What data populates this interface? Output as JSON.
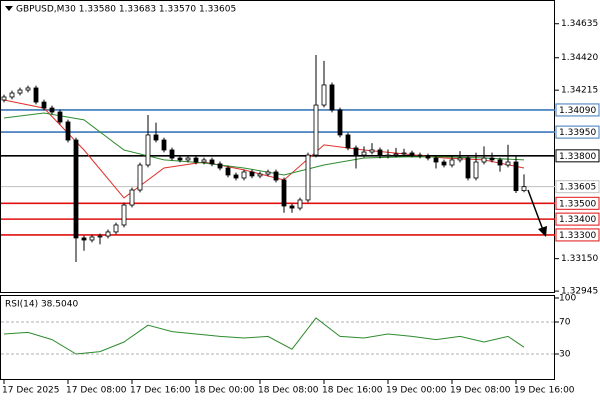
{
  "chart_data": {
    "type": "candlestick",
    "title": "GBPUSD,M30  1.33580 1.33683 1.33570 1.33605",
    "xlim": [
      -0.5,
      68.875
    ],
    "xticks": [
      {
        "value": 0,
        "label": "17 Dec 2025"
      },
      {
        "value": 8,
        "label": "17 Dec 08:00"
      },
      {
        "value": 16,
        "label": "17 Dec 16:00"
      },
      {
        "value": 24,
        "label": "18 Dec 00:00"
      },
      {
        "value": 32,
        "label": "18 Dec 08:00"
      },
      {
        "value": 40,
        "label": "18 Dec 16:00"
      },
      {
        "value": 48,
        "label": "19 Dec 00:00"
      },
      {
        "value": 56,
        "label": "19 Dec 08:00"
      },
      {
        "value": 64,
        "label": "19 Dec 16:00"
      }
    ],
    "ylim": [
      1.32933,
      1.34785
    ],
    "yticks": [
      1.34635,
      {
        "value": 1.3442,
        "label": "1.34420"
      },
      1.34215,
      {
        "value": 1.3315,
        "label": "1.33150"
      },
      1.32945
    ],
    "up_color": "#ffffff",
    "down_color": "#000000",
    "open": [
      1.34153,
      1.34172,
      1.34197,
      1.34216,
      1.34229,
      1.3414,
      1.34102,
      1.34077,
      1.34014,
      1.339,
      1.33281,
      1.33268,
      1.33287,
      1.33293,
      1.33319,
      1.33363,
      1.33489,
      1.33584,
      1.33742,
      1.33932,
      1.339,
      1.33837,
      1.33786,
      1.33774,
      1.33786,
      1.33761,
      1.33774,
      1.33749,
      1.33723,
      1.33679,
      1.3366,
      1.33698,
      1.33673,
      1.33685,
      1.33698,
      1.33647,
      1.33483,
      1.3347,
      1.33521,
      1.33805,
      1.34121,
      1.34248,
      1.3409,
      1.33932,
      1.3385,
      1.33805,
      1.33824,
      1.33837,
      1.33799,
      1.33805,
      1.33812,
      1.33818,
      1.33805,
      1.33799,
      1.33786,
      1.33761,
      1.33742,
      1.33774,
      1.33786,
      1.3366,
      1.33761,
      1.33786,
      1.33774,
      1.33742,
      1.33761,
      1.3358
    ],
    "high": [
      1.34187,
      1.34212,
      1.34231,
      1.34244,
      1.34244,
      1.34155,
      1.34117,
      1.34092,
      1.34029,
      1.33915,
      1.33296,
      1.33302,
      1.33308,
      1.33334,
      1.33378,
      1.33504,
      1.33599,
      1.33757,
      1.34058,
      1.3401,
      1.33915,
      1.33852,
      1.33801,
      1.33801,
      1.33801,
      1.33789,
      1.33789,
      1.33764,
      1.33738,
      1.33694,
      1.33713,
      1.33713,
      1.337,
      1.33713,
      1.33713,
      1.33662,
      1.33498,
      1.33536,
      1.3382,
      1.34437,
      1.344,
      1.34263,
      1.34105,
      1.33947,
      1.33865,
      1.3386,
      1.3388,
      1.33852,
      1.3384,
      1.3385,
      1.33845,
      1.33833,
      1.3382,
      1.33814,
      1.33801,
      1.33776,
      1.338,
      1.3383,
      1.33801,
      1.3382,
      1.3386,
      1.3382,
      1.33789,
      1.3387,
      1.338,
      1.33683
    ],
    "low": [
      1.34138,
      1.34157,
      1.34182,
      1.34201,
      1.34125,
      1.34087,
      1.34062,
      1.33999,
      1.33885,
      1.33129,
      1.332,
      1.33253,
      1.3324,
      1.33278,
      1.33304,
      1.33348,
      1.33474,
      1.33569,
      1.33727,
      1.33885,
      1.33822,
      1.33771,
      1.33759,
      1.33759,
      1.33746,
      1.33746,
      1.33734,
      1.33708,
      1.33664,
      1.33645,
      1.33645,
      1.33658,
      1.33658,
      1.3367,
      1.33632,
      1.3344,
      1.3344,
      1.33455,
      1.33506,
      1.3379,
      1.34106,
      1.34075,
      1.33917,
      1.33835,
      1.3372,
      1.3379,
      1.33809,
      1.33784,
      1.33784,
      1.3379,
      1.33797,
      1.3379,
      1.33784,
      1.33771,
      1.3372,
      1.33727,
      1.33727,
      1.33759,
      1.33645,
      1.33645,
      1.33746,
      1.33759,
      1.337,
      1.33727,
      1.33565,
      1.3357
    ],
    "close": [
      1.34172,
      1.34197,
      1.34216,
      1.34229,
      1.3414,
      1.34102,
      1.34077,
      1.34014,
      1.339,
      1.33281,
      1.33268,
      1.33287,
      1.33293,
      1.33319,
      1.33363,
      1.33489,
      1.33584,
      1.33742,
      1.33932,
      1.339,
      1.33837,
      1.33786,
      1.33774,
      1.33786,
      1.33761,
      1.33774,
      1.33749,
      1.33723,
      1.33679,
      1.3366,
      1.33698,
      1.33673,
      1.33685,
      1.33698,
      1.33647,
      1.33483,
      1.3347,
      1.33521,
      1.33805,
      1.34121,
      1.34248,
      1.3409,
      1.33932,
      1.3385,
      1.33805,
      1.33824,
      1.33837,
      1.33799,
      1.33805,
      1.33812,
      1.33818,
      1.33805,
      1.33799,
      1.33786,
      1.33761,
      1.33742,
      1.33774,
      1.33786,
      1.3366,
      1.33761,
      1.33786,
      1.33774,
      1.33742,
      1.33761,
      1.3358,
      1.33605
    ],
    "lines": [
      {
        "color": "#e0302a",
        "x": [
          0,
          5,
          10,
          15,
          20,
          25,
          30,
          35,
          40,
          45,
          50,
          55,
          60,
          65
        ],
        "values": [
          1.34153,
          1.34102,
          1.33837,
          1.33534,
          1.33723,
          1.33761,
          1.33711,
          1.33647,
          1.33869,
          1.33837,
          1.33812,
          1.33786,
          1.33774,
          1.33723
        ]
      },
      {
        "color": "#2e8b2e",
        "x": [
          0,
          5,
          10,
          15,
          20,
          25,
          30,
          35,
          40,
          45,
          50,
          55,
          60,
          65
        ],
        "values": [
          1.34039,
          1.34071,
          1.34027,
          1.33837,
          1.33774,
          1.33755,
          1.33723,
          1.33679,
          1.33742,
          1.33786,
          1.33793,
          1.33793,
          1.33786,
          1.33774
        ]
      }
    ],
    "levels": [
      {
        "value": 1.3409,
        "label": "1.34090",
        "color": "#3d78b8"
      },
      {
        "value": 1.3395,
        "label": "1.33950",
        "color": "#3d78b8"
      },
      {
        "value": 1.338,
        "label": "1.33800",
        "color": "#000000"
      },
      {
        "value": 1.33605,
        "label": "1.33605",
        "color": "#c0c0c0"
      },
      {
        "value": 1.335,
        "label": "1.33500",
        "color": "#e01010"
      },
      {
        "value": 1.334,
        "label": "1.33400",
        "color": "#e01010"
      },
      {
        "value": 1.333,
        "label": "1.33300",
        "color": "#e01010"
      }
    ],
    "indicator": {
      "type": "line",
      "title": "RSI(14) 38.5040",
      "color": "#2e8b2e",
      "ylim": [
        -2.5,
        102.5
      ],
      "yticks": [
        100,
        70,
        30
      ],
      "levels": [
        70,
        30
      ],
      "x": [
        0,
        3,
        6,
        9,
        12,
        15,
        18,
        21,
        24,
        27,
        30,
        33,
        36,
        39,
        42,
        45,
        48,
        51,
        54,
        57,
        60,
        63,
        65
      ],
      "values": [
        55,
        57,
        48,
        30,
        33,
        45,
        66,
        58,
        55,
        52,
        50,
        52,
        36,
        75,
        52,
        50,
        55,
        52,
        48,
        52,
        45,
        52,
        38.504
      ]
    }
  }
}
